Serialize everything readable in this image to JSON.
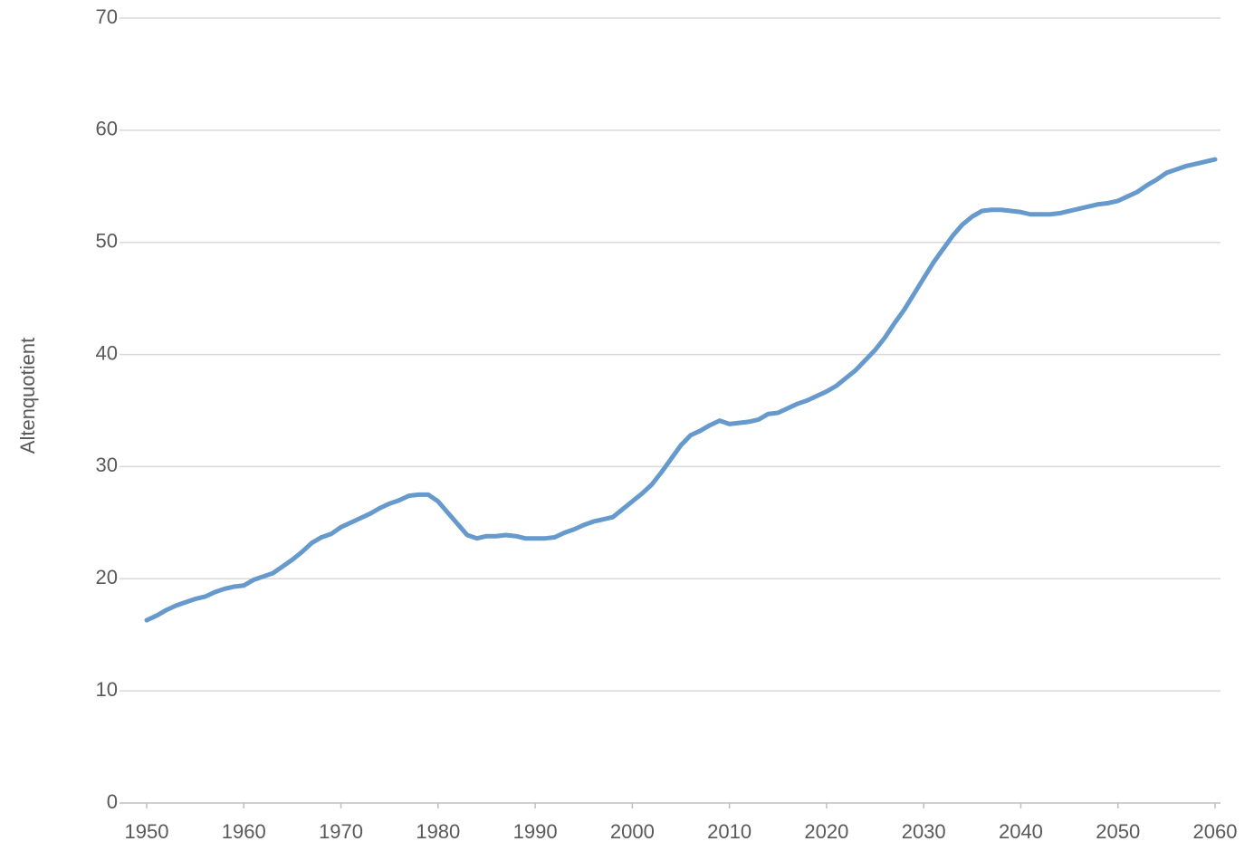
{
  "chart_data": {
    "type": "line",
    "y_label": "Altenquotient",
    "x": [
      1950,
      1951,
      1952,
      1953,
      1954,
      1955,
      1956,
      1957,
      1958,
      1959,
      1960,
      1961,
      1962,
      1963,
      1964,
      1965,
      1966,
      1967,
      1968,
      1969,
      1970,
      1971,
      1972,
      1973,
      1974,
      1975,
      1976,
      1977,
      1978,
      1979,
      1980,
      1981,
      1982,
      1983,
      1984,
      1985,
      1986,
      1987,
      1988,
      1989,
      1990,
      1991,
      1992,
      1993,
      1994,
      1995,
      1996,
      1997,
      1998,
      1999,
      2000,
      2001,
      2002,
      2003,
      2004,
      2005,
      2006,
      2007,
      2008,
      2009,
      2010,
      2011,
      2012,
      2013,
      2014,
      2015,
      2016,
      2017,
      2018,
      2019,
      2020,
      2021,
      2022,
      2023,
      2024,
      2025,
      2026,
      2027,
      2028,
      2029,
      2030,
      2031,
      2032,
      2033,
      2034,
      2035,
      2036,
      2037,
      2038,
      2039,
      2040,
      2041,
      2042,
      2043,
      2044,
      2045,
      2046,
      2047,
      2048,
      2049,
      2050,
      2051,
      2052,
      2053,
      2054,
      2055,
      2056,
      2057,
      2058,
      2059,
      2060
    ],
    "series": [
      {
        "color": "#6699cc",
        "values": [
          16.3,
          16.7,
          17.2,
          17.6,
          17.9,
          18.2,
          18.4,
          18.8,
          19.1,
          19.3,
          19.4,
          19.9,
          20.2,
          20.5,
          21.1,
          21.7,
          22.4,
          23.2,
          23.7,
          24.0,
          24.6,
          25.0,
          25.4,
          25.8,
          26.3,
          26.7,
          27.0,
          27.4,
          27.5,
          27.5,
          26.9,
          25.9,
          24.9,
          23.9,
          23.6,
          23.8,
          23.8,
          23.9,
          23.8,
          23.6,
          23.6,
          23.6,
          23.7,
          24.1,
          24.4,
          24.8,
          25.1,
          25.3,
          25.5,
          26.2,
          26.9,
          27.6,
          28.4,
          29.5,
          30.7,
          31.9,
          32.8,
          33.2,
          33.7,
          34.1,
          33.8,
          33.9,
          34.0,
          34.2,
          34.7,
          34.8,
          35.2,
          35.6,
          35.9,
          36.3,
          36.7,
          37.2,
          37.9,
          38.6,
          39.5,
          40.4,
          41.5,
          42.8,
          44.0,
          45.4,
          46.8,
          48.2,
          49.4,
          50.6,
          51.6,
          52.3,
          52.8,
          52.9,
          52.9,
          52.8,
          52.7,
          52.5,
          52.5,
          52.5,
          52.6,
          52.8,
          53.0,
          53.2,
          53.4,
          53.5,
          53.7,
          54.1,
          54.5,
          55.1,
          55.6,
          56.2,
          56.5,
          56.8,
          57.0,
          57.2,
          57.4
        ]
      }
    ],
    "xlim": [
      1950,
      2060
    ],
    "xticks": [
      1950,
      1960,
      1970,
      1980,
      1990,
      2000,
      2010,
      2020,
      2030,
      2040,
      2050,
      2060
    ],
    "ylim": [
      0,
      70
    ],
    "yticks": [
      0,
      10,
      20,
      30,
      40,
      50,
      60,
      70
    ],
    "grid": true
  }
}
